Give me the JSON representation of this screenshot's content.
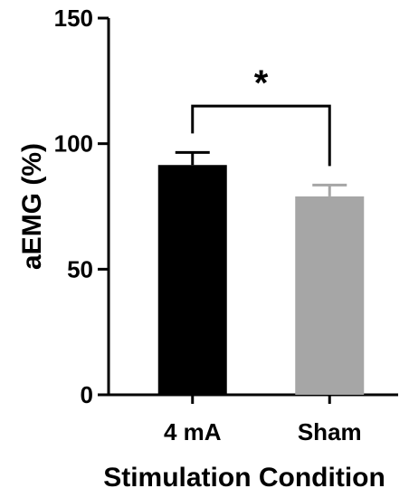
{
  "chart_data": {
    "type": "bar",
    "title": "",
    "xlabel": "Stimulation Condition",
    "ylabel": "aEMG (%)",
    "ylim": [
      0,
      150
    ],
    "yticks": [
      0,
      50,
      100,
      150
    ],
    "categories": [
      "4 mA",
      "Sham"
    ],
    "values": [
      91.5,
      79
    ],
    "errors": [
      5,
      4.5
    ],
    "bar_colors": [
      "#000000",
      "#a6a6a6"
    ],
    "grid": false,
    "legend": "none",
    "significance": {
      "between": [
        0,
        1
      ],
      "label": "*"
    }
  }
}
